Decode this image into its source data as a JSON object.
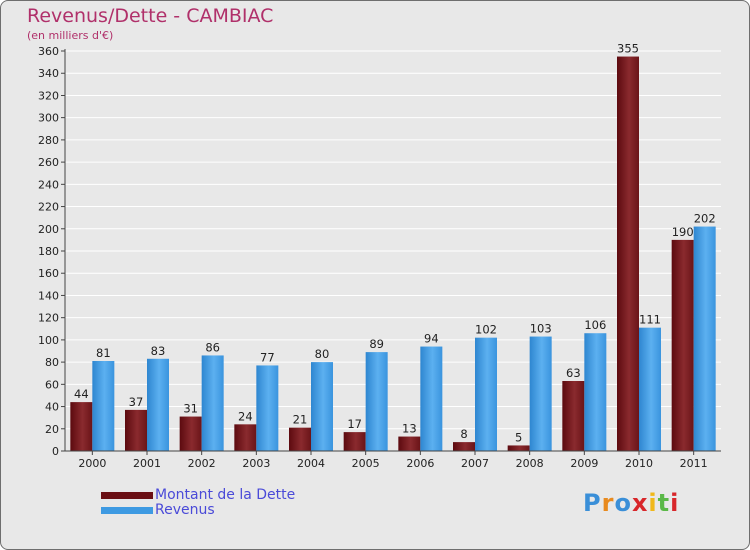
{
  "header": {
    "title": "Revenus/Dette - CAMBIAC",
    "subtitle": "(en milliers d'€)"
  },
  "chart_data": {
    "type": "bar",
    "title": "Revenus/Dette - CAMBIAC",
    "subtitle": "(en milliers d'€)",
    "categories": [
      "2000",
      "2001",
      "2002",
      "2003",
      "2004",
      "2005",
      "2006",
      "2007",
      "2008",
      "2009",
      "2010",
      "2011"
    ],
    "series": [
      {
        "name": "Montant de la Dette",
        "values": [
          44,
          37,
          31,
          24,
          21,
          17,
          13,
          8,
          5,
          63,
          355,
          190
        ],
        "color": "#7a1a1f"
      },
      {
        "name": "Revenus",
        "values": [
          81,
          83,
          86,
          77,
          80,
          89,
          94,
          102,
          103,
          106,
          111,
          202
        ],
        "color": "#3e9ae2"
      }
    ],
    "ylim": [
      0,
      360
    ],
    "yticks": [
      0,
      20,
      40,
      60,
      80,
      100,
      120,
      140,
      160,
      180,
      200,
      220,
      240,
      260,
      280,
      300,
      320,
      340,
      360
    ],
    "grid": true,
    "legend": "bottom-left"
  },
  "legend": {
    "items": [
      {
        "label": "Montant de la Dette",
        "color": "#6a0f14"
      },
      {
        "label": "Revenus",
        "color": "#3e9ae2"
      }
    ]
  },
  "logo": {
    "text": "Proxiti",
    "colors": [
      "#3a8fd8",
      "#e88a1e",
      "#3a8fd8",
      "#d8262a",
      "#f0b81a",
      "#5ab848",
      "#d8262a"
    ]
  }
}
